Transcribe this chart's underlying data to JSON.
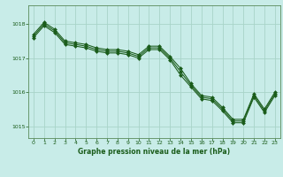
{
  "title": "Graphe pression niveau de la mer (hPa)",
  "bg_color": "#c8ece8",
  "plot_bg_color": "#c8ece8",
  "grid_color": "#a8d4c8",
  "line_color": "#1a5c1a",
  "marker_color": "#1a5c1a",
  "tick_color": "#1a5c1a",
  "title_color": "#1a5c1a",
  "xlim": [
    -0.5,
    23.5
  ],
  "ylim": [
    1014.65,
    1018.55
  ],
  "yticks": [
    1015,
    1016,
    1017,
    1018
  ],
  "xticks": [
    0,
    1,
    2,
    3,
    4,
    5,
    6,
    7,
    8,
    9,
    10,
    11,
    12,
    13,
    14,
    15,
    16,
    17,
    18,
    19,
    20,
    21,
    22,
    23
  ],
  "series": [
    [
      1017.7,
      1018.05,
      1017.85,
      1017.5,
      1017.45,
      1017.4,
      1017.3,
      1017.25,
      1017.25,
      1017.2,
      1017.1,
      1017.35,
      1017.35,
      1017.05,
      1016.7,
      1016.25,
      1015.9,
      1015.85,
      1015.55,
      1015.2,
      1015.2,
      1015.95,
      1015.5,
      1016.0
    ],
    [
      1017.65,
      1018.0,
      1017.8,
      1017.45,
      1017.4,
      1017.35,
      1017.25,
      1017.2,
      1017.2,
      1017.15,
      1017.05,
      1017.3,
      1017.3,
      1017.0,
      1016.6,
      1016.2,
      1015.85,
      1015.8,
      1015.5,
      1015.15,
      1015.15,
      1015.9,
      1015.45,
      1015.95
    ],
    [
      1017.6,
      1017.95,
      1017.75,
      1017.4,
      1017.35,
      1017.3,
      1017.2,
      1017.15,
      1017.15,
      1017.1,
      1017.0,
      1017.25,
      1017.25,
      1016.95,
      1016.5,
      1016.15,
      1015.8,
      1015.75,
      1015.45,
      1015.1,
      1015.1,
      1015.85,
      1015.4,
      1015.9
    ]
  ]
}
